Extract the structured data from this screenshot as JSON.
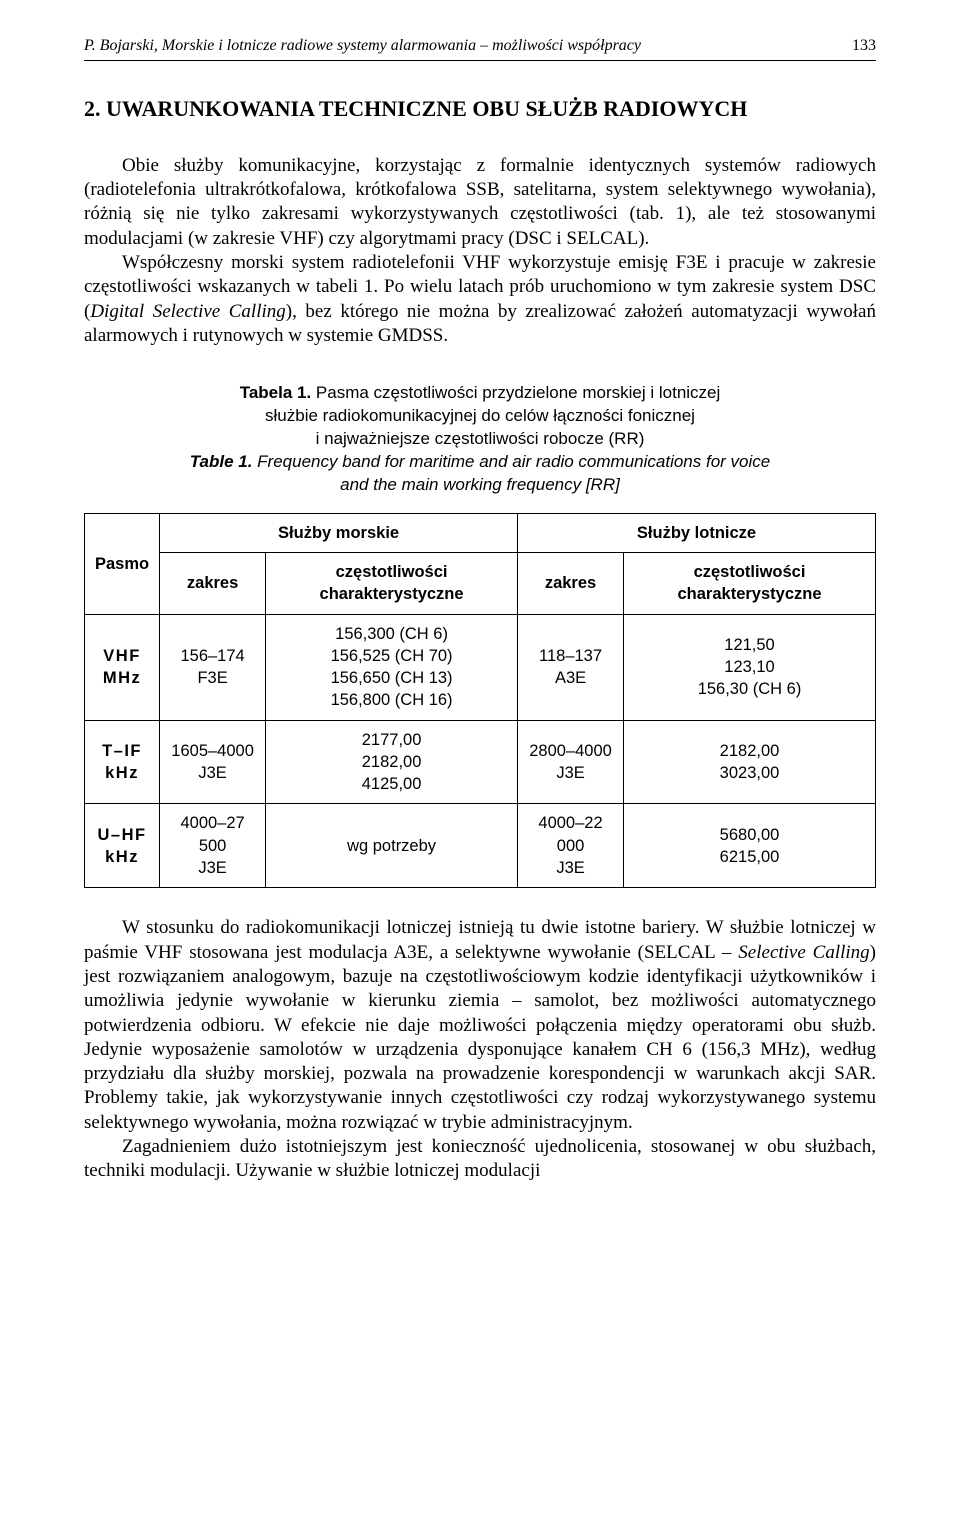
{
  "running_head": {
    "title": "P. Bojarski, Morskie i lotnicze radiowe systemy alarmowania – możliwości współpracy",
    "page_number": "133"
  },
  "section_title": "2. UWARUNKOWANIA TECHNICZNE OBU SŁUŻB RADIOWYCH",
  "paragraph_1": "Obie służby komunikacyjne, korzystając z formalnie identycznych systemów radiowych (radiotelefonia ultrakrótkofalowa, krótkofalowa SSB, satelitarna, system selektywnego wywołania), różnią się nie tylko zakresami wykorzystywanych częstotliwości (tab. 1), ale też stosowanymi modulacjami (w zakresie VHF) czy algorytmami pracy (DSC i SELCAL).",
  "paragraph_2a": "Współczesny morski system radiotelefonii VHF wykorzystuje emisję F3E i pracuje w zakresie częstotliwości wskazanych w tabeli 1. Po wielu latach prób uruchomiono w tym zakresie system DSC (",
  "paragraph_2_term": "Digital Selective Calling",
  "paragraph_2b": "), bez którego nie można by zrealizować założeń automatyzacji wywołań alarmowych i rutynowych w systemie GMDSS.",
  "caption": {
    "line1_bold": "Tabela 1.",
    "line1_rest": " Pasma częstotliwości przydzielone morskiej i lotniczej",
    "line2": "służbie radiokomunikacyjnej do celów łączności fonicznej",
    "line3": "i najważniejsze częstotliwości robocze (RR)",
    "line4_bold": "Table 1.",
    "line4_rest": " Frequency band for maritime and air radio communications for voice",
    "line5": "and the main working frequency [RR]"
  },
  "table": {
    "head": {
      "pasmo": "Pasmo",
      "marine": "Służby morskie",
      "air": "Służby lotnicze",
      "zakres": "zakres",
      "charfreq": "częstotliwości charakterystyczne"
    },
    "rows": [
      {
        "label_line1": "VHF",
        "label_line2": "MHz",
        "marine_zakres_l1": "156–174",
        "marine_zakres_l2": "F3E",
        "marine_char_l1": "156,300 (CH 6)",
        "marine_char_l2": "156,525 (CH 70)",
        "marine_char_l3": "156,650 (CH 13)",
        "marine_char_l4": "156,800 (CH 16)",
        "air_zakres_l1": "118–137",
        "air_zakres_l2": "A3E",
        "air_char_l1": "121,50",
        "air_char_l2": "123,10",
        "air_char_l3": "156,30 (CH 6)"
      },
      {
        "label_line1": "T–IF",
        "label_line2": "kHz",
        "marine_zakres_l1": "1605–4000",
        "marine_zakres_l2": "J3E",
        "marine_char_l1": "2177,00",
        "marine_char_l2": "2182,00",
        "marine_char_l3": "4125,00",
        "air_zakres_l1": "2800–4000",
        "air_zakres_l2": "J3E",
        "air_char_l1": "2182,00",
        "air_char_l2": "3023,00"
      },
      {
        "label_line1": "U–HF",
        "label_line2": "kHz",
        "marine_zakres_l1": "4000–27 500",
        "marine_zakres_l2": "J3E",
        "marine_char_l1": "wg potrzeby",
        "air_zakres_l1": "4000–22 000",
        "air_zakres_l2": "J3E",
        "air_char_l1": "5680,00",
        "air_char_l2": "6215,00"
      }
    ]
  },
  "paragraph_3a": "W stosunku do radiokomunikacji lotniczej istnieją tu dwie istotne bariery. W służbie lotniczej w paśmie VHF stosowana jest modulacja A3E, a selektywne wywołanie (SELCAL – ",
  "paragraph_3_term": "Selective Calling",
  "paragraph_3b": ") jest rozwiązaniem analogowym, bazuje na częstotliwościowym kodzie identyfikacji użytkowników i umożliwia jedynie wywołanie w kierunku ziemia – samolot, bez możliwości automatycznego potwierdzenia odbioru. W efekcie nie daje możliwości połączenia między operatorami obu służb. Jedynie wyposażenie samolotów w urządzenia dysponujące kanałem CH 6 (156,3 MHz), według przydziału dla służby morskiej, pozwala na prowadzenie korespondencji w warunkach akcji SAR. Problemy takie, jak wykorzystywanie innych częstotliwości czy rodzaj wykorzystywanego systemu selektywnego wywołania, można rozwiązać w trybie administracyjnym.",
  "paragraph_4": "Zagadnieniem dużo istotniejszym jest konieczność ujednolicenia, stosowanej w obu służbach, techniki modulacji. Używanie w służbie lotniczej modulacji"
}
